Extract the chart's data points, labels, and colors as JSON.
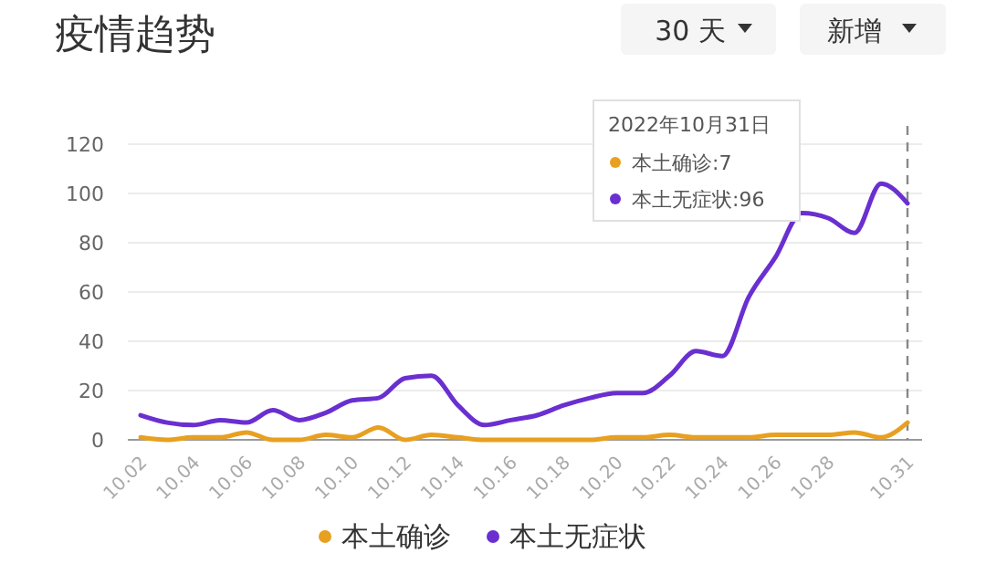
{
  "chart_data": {
    "type": "line",
    "title": "疫情趋势",
    "annotations": [
      "30 天",
      "新增",
      "2022年10月31日",
      "本土确诊:7",
      "本土无症状:96"
    ],
    "categories": [
      "10.02",
      null,
      "10.04",
      null,
      "10.06",
      null,
      "10.08",
      null,
      "10.10",
      null,
      "10.12",
      null,
      "10.14",
      null,
      "10.16",
      null,
      "10.18",
      null,
      "10.20",
      null,
      "10.22",
      null,
      "10.24",
      null,
      "10.26",
      null,
      "10.28",
      null,
      null,
      "10.31"
    ],
    "series": [
      {
        "name": "本土确诊",
        "color": "#e8a020",
        "values": [
          1,
          0,
          1,
          1,
          3,
          0,
          0,
          2,
          1,
          5,
          0,
          2,
          1,
          0,
          0,
          0,
          0,
          0,
          1,
          1,
          2,
          1,
          1,
          1,
          2,
          2,
          2,
          3,
          1,
          7
        ]
      },
      {
        "name": "本土无症状",
        "color": "#6a2fd0",
        "values": [
          10,
          7,
          6,
          8,
          7,
          12,
          8,
          11,
          16,
          17,
          25,
          26,
          14,
          6,
          8,
          10,
          14,
          17,
          19,
          19,
          26,
          36,
          34,
          58,
          74,
          92,
          90,
          84,
          104,
          96
        ]
      }
    ],
    "ylim": [
      0,
      120
    ],
    "yticks": [
      0,
      20,
      40,
      60,
      80,
      100,
      120
    ],
    "grid": "y",
    "legend": "bottom",
    "marker": "none",
    "line_style": "solid",
    "ref_lines": [
      {
        "axis": "x",
        "value": "10.31",
        "line_style": "dashed",
        "color": "#888888"
      }
    ]
  }
}
